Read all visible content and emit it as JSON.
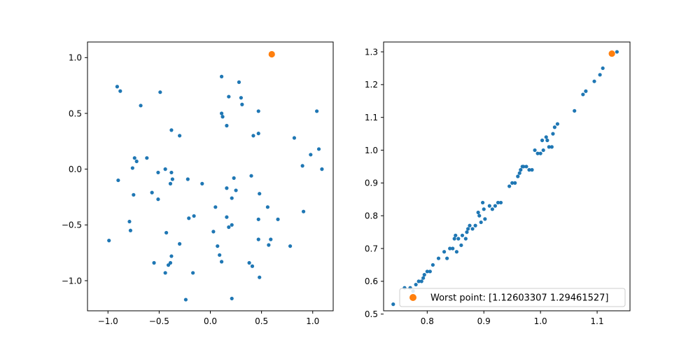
{
  "colors": {
    "series": "#1f77b4",
    "highlight": "#ff7f0e",
    "axis": "#000000",
    "legend_border": "#cccccc"
  },
  "chart_data": [
    {
      "type": "scatter",
      "title": "",
      "xlabel": "",
      "ylabel": "",
      "xlim": [
        -1.2,
        1.2
      ],
      "ylim": [
        -1.27,
        1.14
      ],
      "xticks": [
        -1.0,
        -0.5,
        0.0,
        0.5,
        1.0
      ],
      "xtick_labels": [
        "−1.0",
        "−0.5",
        "0.0",
        "0.5",
        "1.0"
      ],
      "yticks": [
        -1.0,
        -0.5,
        0.0,
        0.5,
        1.0
      ],
      "ytick_labels": [
        "−1.0",
        "−0.5",
        "0.0",
        "0.5",
        "1.0"
      ],
      "grid": false,
      "points": [
        [
          -0.91,
          0.74
        ],
        [
          -0.88,
          0.7
        ],
        [
          -0.49,
          0.69
        ],
        [
          -0.68,
          0.57
        ],
        [
          0.11,
          0.83
        ],
        [
          0.28,
          0.78
        ],
        [
          0.18,
          0.65
        ],
        [
          0.3,
          0.64
        ],
        [
          0.31,
          0.58
        ],
        [
          0.11,
          0.5
        ],
        [
          0.12,
          0.47
        ],
        [
          0.47,
          0.52
        ],
        [
          1.04,
          0.52
        ],
        [
          0.16,
          0.39
        ],
        [
          -0.38,
          0.35
        ],
        [
          -0.3,
          0.3
        ],
        [
          0.47,
          0.32
        ],
        [
          0.42,
          0.3
        ],
        [
          0.82,
          0.28
        ],
        [
          1.06,
          0.18
        ],
        [
          0.98,
          0.13
        ],
        [
          0.9,
          0.03
        ],
        [
          1.09,
          0.0
        ],
        [
          -0.74,
          0.1
        ],
        [
          -0.62,
          0.1
        ],
        [
          -0.72,
          0.07
        ],
        [
          -0.76,
          0.01
        ],
        [
          -0.44,
          0.0
        ],
        [
          -0.51,
          -0.03
        ],
        [
          -0.38,
          -0.03
        ],
        [
          -0.37,
          -0.09
        ],
        [
          -0.39,
          -0.13
        ],
        [
          -0.22,
          -0.09
        ],
        [
          -0.08,
          -0.13
        ],
        [
          0.23,
          -0.08
        ],
        [
          0.4,
          -0.06
        ],
        [
          -0.9,
          -0.1
        ],
        [
          -0.57,
          -0.21
        ],
        [
          -0.75,
          -0.23
        ],
        [
          -0.51,
          -0.27
        ],
        [
          0.16,
          -0.17
        ],
        [
          0.25,
          -0.19
        ],
        [
          0.21,
          -0.26
        ],
        [
          0.48,
          -0.22
        ],
        [
          0.56,
          -0.34
        ],
        [
          0.05,
          -0.34
        ],
        [
          0.16,
          -0.43
        ],
        [
          0.47,
          -0.45
        ],
        [
          0.66,
          -0.45
        ],
        [
          -0.16,
          -0.42
        ],
        [
          -0.21,
          -0.44
        ],
        [
          -0.79,
          -0.47
        ],
        [
          -0.78,
          -0.55
        ],
        [
          0.18,
          -0.52
        ],
        [
          0.21,
          -0.5
        ],
        [
          0.03,
          -0.56
        ],
        [
          -0.43,
          -0.57
        ],
        [
          0.47,
          -0.63
        ],
        [
          0.59,
          -0.63
        ],
        [
          0.57,
          -0.68
        ],
        [
          -0.3,
          -0.67
        ],
        [
          0.07,
          -0.69
        ],
        [
          0.78,
          -0.69
        ],
        [
          -0.99,
          -0.64
        ],
        [
          0.09,
          -0.77
        ],
        [
          -0.38,
          -0.78
        ],
        [
          0.11,
          -0.83
        ],
        [
          0.38,
          -0.84
        ],
        [
          0.41,
          -0.87
        ],
        [
          -0.55,
          -0.84
        ],
        [
          -0.39,
          -0.84
        ],
        [
          -0.41,
          -0.86
        ],
        [
          -0.17,
          -0.93
        ],
        [
          -0.44,
          -0.93
        ],
        [
          0.48,
          -0.97
        ],
        [
          -0.24,
          -1.17
        ],
        [
          0.21,
          -1.16
        ],
        [
          0.91,
          -0.38
        ]
      ],
      "highlight_point": [
        0.6,
        1.03
      ]
    },
    {
      "type": "scatter",
      "title": "",
      "xlabel": "",
      "ylabel": "",
      "xlim": [
        0.723,
        1.158
      ],
      "ylim": [
        0.51,
        1.33
      ],
      "xticks": [
        0.8,
        0.9,
        1.0,
        1.1
      ],
      "xtick_labels": [
        "0.8",
        "0.9",
        "1.0",
        "1.1"
      ],
      "yticks": [
        0.5,
        0.6,
        0.7,
        0.8,
        0.9,
        1.0,
        1.1,
        1.2,
        1.3
      ],
      "ytick_labels": [
        "0.5",
        "0.6",
        "0.7",
        "0.8",
        "0.9",
        "1.0",
        "1.1",
        "1.2",
        "1.3"
      ],
      "grid": false,
      "points": [
        [
          0.74,
          0.53
        ],
        [
          0.76,
          0.58
        ],
        [
          0.77,
          0.58
        ],
        [
          0.775,
          0.57
        ],
        [
          0.78,
          0.59
        ],
        [
          0.785,
          0.6
        ],
        [
          0.79,
          0.6
        ],
        [
          0.793,
          0.61
        ],
        [
          0.795,
          0.62
        ],
        [
          0.8,
          0.63
        ],
        [
          0.805,
          0.63
        ],
        [
          0.81,
          0.65
        ],
        [
          0.82,
          0.67
        ],
        [
          0.83,
          0.69
        ],
        [
          0.835,
          0.67
        ],
        [
          0.84,
          0.7
        ],
        [
          0.845,
          0.7
        ],
        [
          0.848,
          0.73
        ],
        [
          0.85,
          0.74
        ],
        [
          0.852,
          0.69
        ],
        [
          0.855,
          0.73
        ],
        [
          0.86,
          0.71
        ],
        [
          0.862,
          0.74
        ],
        [
          0.868,
          0.73
        ],
        [
          0.87,
          0.75
        ],
        [
          0.872,
          0.76
        ],
        [
          0.875,
          0.77
        ],
        [
          0.88,
          0.76
        ],
        [
          0.885,
          0.77
        ],
        [
          0.89,
          0.81
        ],
        [
          0.892,
          0.8
        ],
        [
          0.895,
          0.78
        ],
        [
          0.898,
          0.84
        ],
        [
          0.9,
          0.82
        ],
        [
          0.902,
          0.79
        ],
        [
          0.91,
          0.83
        ],
        [
          0.915,
          0.82
        ],
        [
          0.92,
          0.83
        ],
        [
          0.925,
          0.84
        ],
        [
          0.93,
          0.84
        ],
        [
          0.945,
          0.89
        ],
        [
          0.95,
          0.9
        ],
        [
          0.955,
          0.9
        ],
        [
          0.96,
          0.92
        ],
        [
          0.963,
          0.93
        ],
        [
          0.965,
          0.94
        ],
        [
          0.968,
          0.95
        ],
        [
          0.97,
          0.95
        ],
        [
          0.975,
          0.95
        ],
        [
          0.98,
          0.94
        ],
        [
          0.985,
          0.94
        ],
        [
          0.99,
          1.0
        ],
        [
          0.995,
          0.99
        ],
        [
          1.0,
          0.99
        ],
        [
          1.003,
          1.03
        ],
        [
          1.005,
          1.0
        ],
        [
          1.01,
          1.04
        ],
        [
          1.012,
          1.03
        ],
        [
          1.015,
          1.01
        ],
        [
          1.02,
          1.01
        ],
        [
          1.022,
          1.05
        ],
        [
          1.025,
          1.07
        ],
        [
          1.03,
          1.08
        ],
        [
          1.06,
          1.12
        ],
        [
          1.075,
          1.17
        ],
        [
          1.08,
          1.18
        ],
        [
          1.095,
          1.21
        ],
        [
          1.105,
          1.23
        ],
        [
          1.11,
          1.25
        ],
        [
          1.135,
          1.3
        ]
      ],
      "highlight_point": [
        1.12603307,
        1.29461527
      ],
      "legend": {
        "placement": "lower-right",
        "label": "Worst point: [1.12603307 1.29461527]"
      }
    }
  ]
}
